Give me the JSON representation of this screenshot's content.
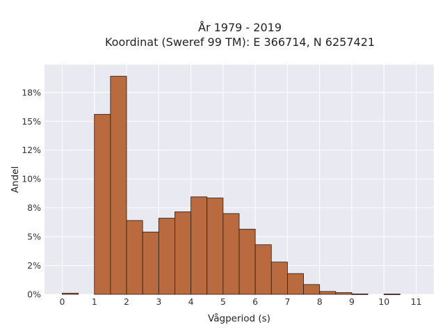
{
  "chart_data": {
    "type": "bar",
    "title_line1": "År 1979 - 2019",
    "title_line2": "Koordinat (Sweref 99 TM): E 366714, N 6257421",
    "xlabel": "Vågperiod (s)",
    "ylabel": "Andel",
    "bin_width": 0.5,
    "bins": [
      {
        "x0": 0.0,
        "value": 0.001
      },
      {
        "x0": 0.5,
        "value": 0.0
      },
      {
        "x0": 1.0,
        "value": 0.156
      },
      {
        "x0": 1.5,
        "value": 0.189
      },
      {
        "x0": 2.0,
        "value": 0.064
      },
      {
        "x0": 2.5,
        "value": 0.054
      },
      {
        "x0": 3.0,
        "value": 0.066
      },
      {
        "x0": 3.5,
        "value": 0.0715
      },
      {
        "x0": 4.0,
        "value": 0.0845
      },
      {
        "x0": 4.5,
        "value": 0.0835
      },
      {
        "x0": 5.0,
        "value": 0.07
      },
      {
        "x0": 5.5,
        "value": 0.0565
      },
      {
        "x0": 6.0,
        "value": 0.043
      },
      {
        "x0": 6.5,
        "value": 0.028
      },
      {
        "x0": 7.0,
        "value": 0.018
      },
      {
        "x0": 7.5,
        "value": 0.0085
      },
      {
        "x0": 8.0,
        "value": 0.0025
      },
      {
        "x0": 8.5,
        "value": 0.0015
      },
      {
        "x0": 9.0,
        "value": 0.0004
      },
      {
        "x0": 9.5,
        "value": 0.0
      },
      {
        "x0": 10.0,
        "value": 0.0003
      },
      {
        "x0": 10.5,
        "value": 0.0
      }
    ],
    "xticks": [
      "0",
      "1",
      "2",
      "3",
      "4",
      "5",
      "6",
      "7",
      "8",
      "9",
      "10",
      "11"
    ],
    "yticks": [
      "0%",
      "2%",
      "5%",
      "8%",
      "10%",
      "12%",
      "15%",
      "18%"
    ],
    "ytick_values": [
      0,
      0.025,
      0.05,
      0.075,
      0.1,
      0.125,
      0.15,
      0.175
    ],
    "xlim": [
      -0.55,
      11.55
    ],
    "ylim": [
      0,
      0.199
    ],
    "grid": true,
    "bar_color": "#b96a3e",
    "bar_edge_color": "#2a1a10",
    "plot_background": "#e9e9f1",
    "grid_color": "#ffffff"
  }
}
